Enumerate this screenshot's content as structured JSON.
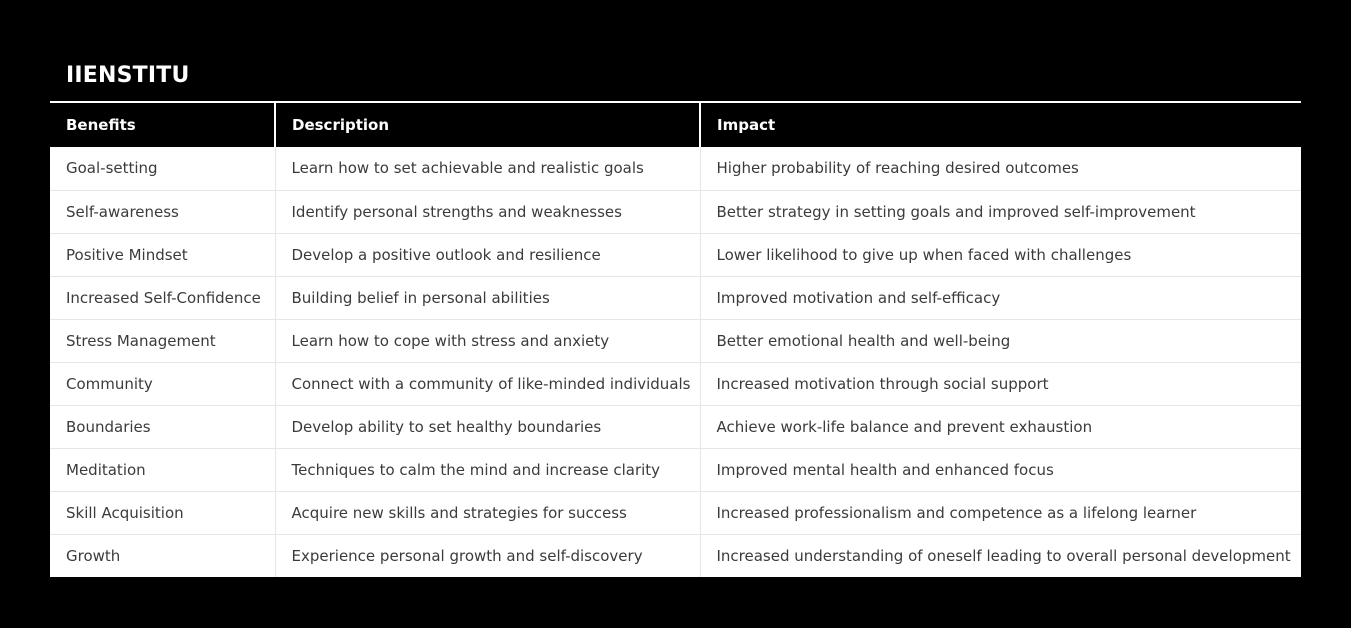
{
  "title": "IIENSTITU",
  "chart_data": {
    "type": "table",
    "title": "IIENSTITU",
    "columns": [
      "Benefits",
      "Description",
      "Impact"
    ],
    "rows": [
      [
        "Goal-setting",
        "Learn how to set achievable and realistic goals",
        "Higher probability of reaching desired outcomes"
      ],
      [
        "Self-awareness",
        "Identify personal strengths and weaknesses",
        "Better strategy in setting goals and improved self-improvement"
      ],
      [
        "Positive Mindset",
        "Develop a positive outlook and resilience",
        "Lower likelihood to give up when faced with challenges"
      ],
      [
        "Increased Self-Confidence",
        "Building belief in personal abilities",
        "Improved motivation and self-efficacy"
      ],
      [
        "Stress Management",
        "Learn how to cope with stress and anxiety",
        "Better emotional health and well-being"
      ],
      [
        "Community",
        "Connect with a community of like-minded individuals",
        "Increased motivation through social support"
      ],
      [
        "Boundaries",
        "Develop ability to set healthy boundaries",
        "Achieve work-life balance and prevent exhaustion"
      ],
      [
        "Meditation",
        "Techniques to calm the mind and increase clarity",
        "Improved mental health and enhanced focus"
      ],
      [
        "Skill Acquisition",
        "Acquire new skills and strategies for success",
        "Increased professionalism and competence as a lifelong learner"
      ],
      [
        "Growth",
        "Experience personal growth and self-discovery",
        "Increased understanding of oneself leading to overall personal development"
      ]
    ]
  },
  "colors": {
    "canvas_background": "#000000",
    "header_background": "#000000",
    "header_text": "#ffffff",
    "row_background": "#ffffff",
    "row_text": "#3b3b3b",
    "divider": "#e6e6e6"
  }
}
